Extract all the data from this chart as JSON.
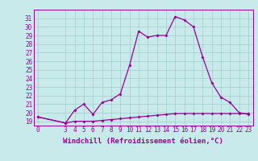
{
  "title": "",
  "xlabel": "Windchill (Refroidissement éolien,°C)",
  "background_color": "#c8eaea",
  "line_color": "#990099",
  "grid_color": "#a0cccc",
  "x_hours": [
    0,
    3,
    4,
    5,
    6,
    7,
    8,
    9,
    10,
    11,
    12,
    13,
    14,
    15,
    16,
    17,
    18,
    19,
    20,
    21,
    22,
    23
  ],
  "y_temp": [
    19.5,
    18.8,
    20.3,
    21.0,
    19.8,
    21.2,
    21.5,
    22.2,
    25.5,
    29.5,
    28.8,
    29.0,
    29.0,
    31.2,
    30.8,
    30.0,
    26.5,
    23.5,
    21.8,
    21.2,
    20.0,
    19.8
  ],
  "y_windchill": [
    19.5,
    18.8,
    19.0,
    19.0,
    19.0,
    19.1,
    19.2,
    19.3,
    19.4,
    19.5,
    19.6,
    19.7,
    19.8,
    19.9,
    19.9,
    19.9,
    19.9,
    19.9,
    19.9,
    19.9,
    19.9,
    19.9
  ],
  "ylim": [
    18.5,
    32
  ],
  "xlim": [
    -0.5,
    23.5
  ],
  "yticks": [
    19,
    20,
    21,
    22,
    23,
    24,
    25,
    26,
    27,
    28,
    29,
    30,
    31
  ],
  "xticks": [
    0,
    3,
    4,
    5,
    6,
    7,
    8,
    9,
    10,
    11,
    12,
    13,
    14,
    15,
    16,
    17,
    18,
    19,
    20,
    21,
    22,
    23
  ],
  "tick_fontsize": 5.5,
  "xlabel_fontsize": 6.5
}
